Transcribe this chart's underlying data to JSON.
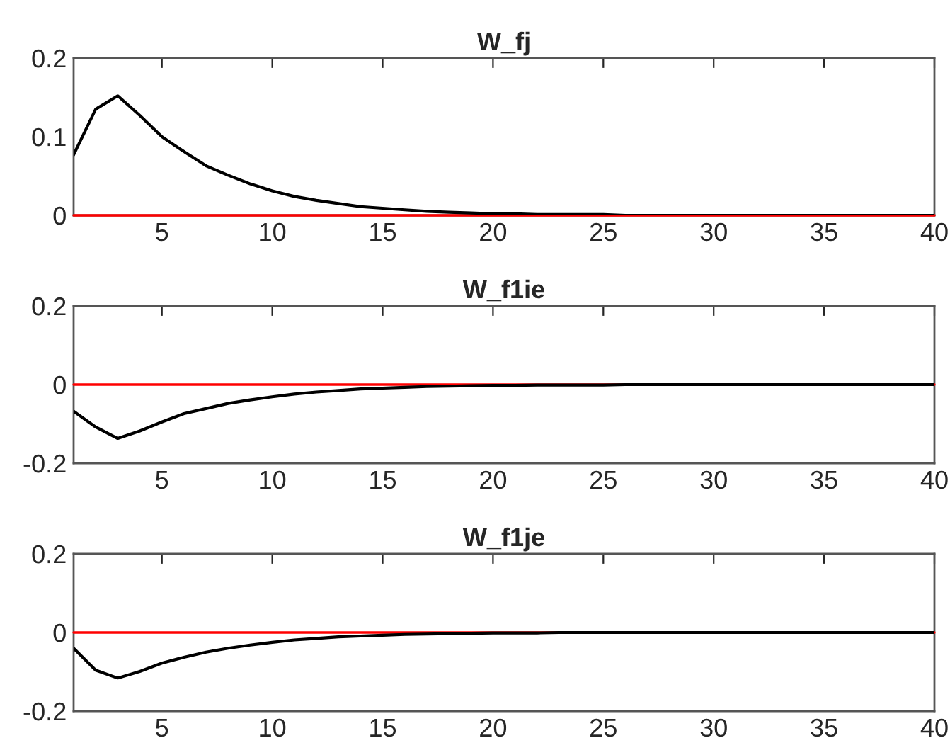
{
  "chart_data": [
    {
      "type": "line",
      "title": "W_fj",
      "x": [
        1,
        2,
        3,
        4,
        5,
        6,
        7,
        8,
        9,
        10,
        11,
        12,
        13,
        14,
        15,
        16,
        17,
        18,
        19,
        20,
        21,
        22,
        23,
        24,
        25,
        26,
        27,
        28,
        29,
        30,
        31,
        32,
        33,
        34,
        35,
        36,
        37,
        38,
        39,
        40
      ],
      "series": [
        {
          "color": "#000000",
          "values": [
            0.077,
            0.135,
            0.152,
            0.127,
            0.1,
            0.081,
            0.063,
            0.051,
            0.04,
            0.031,
            0.024,
            0.019,
            0.015,
            0.011,
            0.009,
            0.007,
            0.005,
            0.004,
            0.003,
            0.002,
            0.002,
            0.001,
            0.001,
            0.001,
            0.001,
            0,
            0,
            0,
            0,
            0,
            0,
            0,
            0,
            0,
            0,
            0,
            0,
            0,
            0,
            0
          ]
        }
      ],
      "ref_lines": [
        {
          "axis": "y",
          "value": 0,
          "color": "#ff0000"
        }
      ],
      "xlim": [
        1,
        40
      ],
      "xticks": [
        5,
        10,
        15,
        20,
        25,
        30,
        35,
        40
      ],
      "ylim": [
        0,
        0.2
      ],
      "yticks": [
        0,
        0.1,
        0.2
      ],
      "grid": false,
      "legend": false
    },
    {
      "type": "line",
      "title": "W_f1ie",
      "x": [
        1,
        2,
        3,
        4,
        5,
        6,
        7,
        8,
        9,
        10,
        11,
        12,
        13,
        14,
        15,
        16,
        17,
        18,
        19,
        20,
        21,
        22,
        23,
        24,
        25,
        26,
        27,
        28,
        29,
        30,
        31,
        32,
        33,
        34,
        35,
        36,
        37,
        38,
        39,
        40
      ],
      "series": [
        {
          "color": "#000000",
          "values": [
            -0.068,
            -0.108,
            -0.137,
            -0.118,
            -0.095,
            -0.074,
            -0.061,
            -0.048,
            -0.039,
            -0.031,
            -0.024,
            -0.019,
            -0.015,
            -0.011,
            -0.009,
            -0.007,
            -0.005,
            -0.004,
            -0.003,
            -0.002,
            -0.002,
            -0.001,
            -0.001,
            -0.001,
            -0.001,
            0,
            0,
            0,
            0,
            0,
            0,
            0,
            0,
            0,
            0,
            0,
            0,
            0,
            0,
            0
          ]
        }
      ],
      "ref_lines": [
        {
          "axis": "y",
          "value": 0,
          "color": "#ff0000"
        }
      ],
      "xlim": [
        1,
        40
      ],
      "xticks": [
        5,
        10,
        15,
        20,
        25,
        30,
        35,
        40
      ],
      "ylim": [
        -0.2,
        0.2
      ],
      "yticks": [
        -0.2,
        0,
        0.2
      ],
      "grid": false,
      "legend": false
    },
    {
      "type": "line",
      "title": "W_f1je",
      "x": [
        1,
        2,
        3,
        4,
        5,
        6,
        7,
        8,
        9,
        10,
        11,
        12,
        13,
        14,
        15,
        16,
        17,
        18,
        19,
        20,
        21,
        22,
        23,
        24,
        25,
        26,
        27,
        28,
        29,
        30,
        31,
        32,
        33,
        34,
        35,
        36,
        37,
        38,
        39,
        40
      ],
      "series": [
        {
          "color": "#000000",
          "values": [
            -0.04,
            -0.096,
            -0.116,
            -0.099,
            -0.078,
            -0.063,
            -0.05,
            -0.04,
            -0.032,
            -0.025,
            -0.019,
            -0.015,
            -0.011,
            -0.009,
            -0.007,
            -0.005,
            -0.004,
            -0.003,
            -0.002,
            -0.001,
            -0.001,
            -0.001,
            0,
            0,
            0,
            0,
            0,
            0,
            0,
            0,
            0,
            0,
            0,
            0,
            0,
            0,
            0,
            0,
            0,
            0
          ]
        }
      ],
      "ref_lines": [
        {
          "axis": "y",
          "value": 0,
          "color": "#ff0000"
        }
      ],
      "xlim": [
        1,
        40
      ],
      "xticks": [
        5,
        10,
        15,
        20,
        25,
        30,
        35,
        40
      ],
      "ylim": [
        -0.2,
        0.2
      ],
      "yticks": [
        -0.2,
        0,
        0.2
      ],
      "grid": false,
      "legend": false
    }
  ]
}
